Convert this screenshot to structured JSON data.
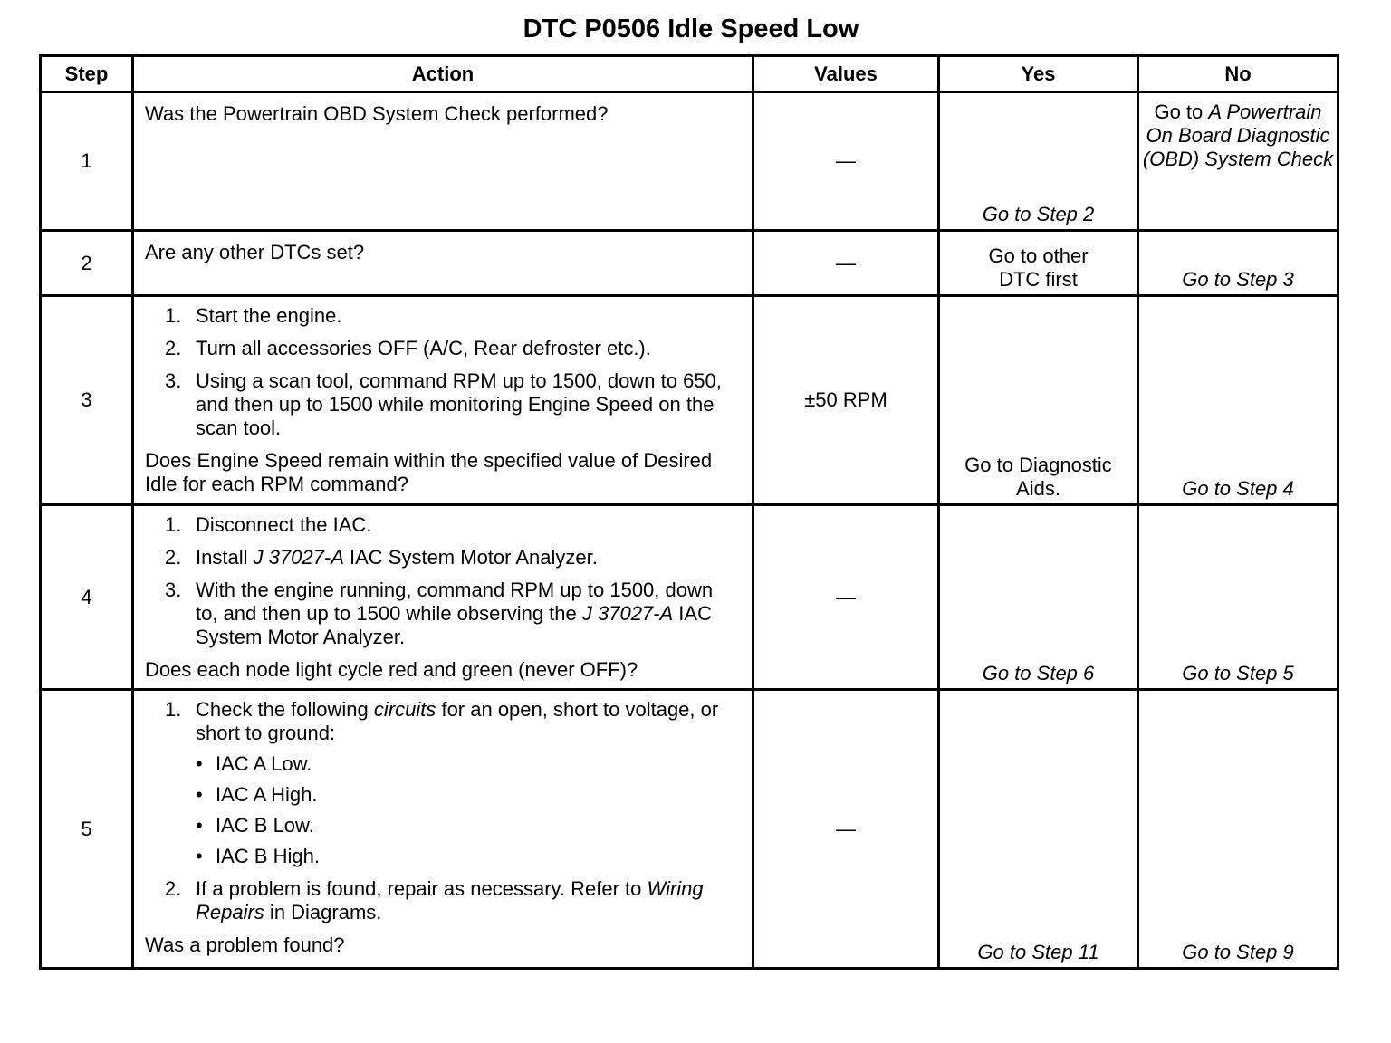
{
  "title": "DTC P0506 Idle Speed Low",
  "headers": [
    "Step",
    "Action",
    "Values",
    "Yes",
    "No"
  ],
  "rows": [
    {
      "step": "1",
      "question": "Was the Powertrain OBD System Check performed?",
      "value": "—",
      "yes": "Go to Step 2",
      "no_prefix": "Go to",
      "no_link": "A Powertrain On Board Diagnostic (OBD) System Check"
    },
    {
      "step": "2",
      "question": "Are any other DTCs set?",
      "value": "—",
      "yes": "Go to other DTC first",
      "no": "Go to Step 3"
    },
    {
      "step": "3",
      "items": [
        {
          "num": "1.",
          "text": "Start the engine."
        },
        {
          "num": "2.",
          "text": "Turn all accessories OFF (A/C, Rear defroster etc.)."
        },
        {
          "num": "3.",
          "text": "Using a scan tool, command RPM up to 1500, down to 650, and then up to 1500 while monitoring Engine Speed on the scan tool."
        }
      ],
      "question": "Does Engine Speed remain within the specified value of Desired Idle for each RPM command?",
      "value": "±50 RPM",
      "yes": "Go to Diagnostic Aids.",
      "no": "Go to Step 4"
    },
    {
      "step": "4",
      "items": [
        {
          "num": "1.",
          "text": "Disconnect the IAC."
        },
        {
          "num": "2.",
          "pre": "Install ",
          "ital": "J 37027-A",
          "post": " IAC System Motor Analyzer."
        },
        {
          "num": "3.",
          "pre": "With the engine running, command RPM up to 1500, down to, and then up to 1500 while observing the ",
          "ital": "J 37027-A",
          "post": " IAC System Motor Analyzer."
        }
      ],
      "question": "Does each node light cycle red and green (never OFF)?",
      "value": "—",
      "yes": "Go to Step 6",
      "no": "Go to Step 5"
    },
    {
      "step": "5",
      "items": [
        {
          "num": "1.",
          "pre": "Check the following ",
          "ital": "circuits",
          "post": " for an open, short to voltage, or short to ground:",
          "bullets": [
            "IAC A Low.",
            "IAC A High.",
            "IAC B Low.",
            "IAC B High."
          ]
        },
        {
          "num": "2.",
          "pre": "If a problem is found, repair as necessary. Refer to ",
          "ital": "Wiring Repairs",
          "post": " in Diagrams."
        }
      ],
      "question": "Was a problem found?",
      "value": "—",
      "yes": "Go to Step 11",
      "no": "Go to Step 9"
    }
  ]
}
